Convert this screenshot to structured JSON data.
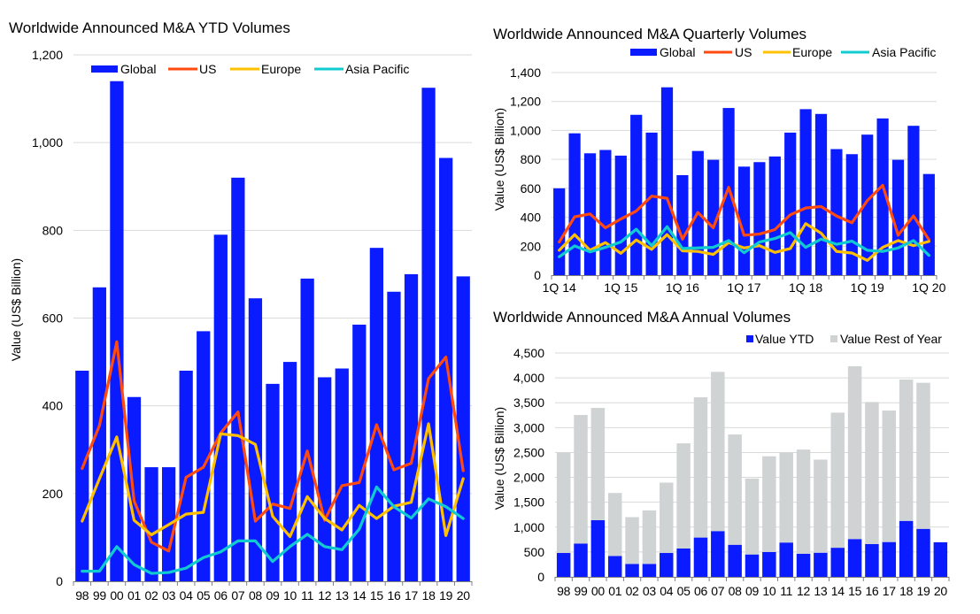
{
  "colors": {
    "global": "#0a1cff",
    "us": "#ff4a10",
    "europe": "#ffc000",
    "asia_pacific": "#10ccd0",
    "rest_of_year": "#d0d3d4",
    "grid": "#d9d9d9"
  },
  "chart_data": [
    {
      "type": "bar+line",
      "title": "Worldwide Announced M&A YTD Volumes",
      "xlabel": "",
      "ylabel": "Value (US$ Billion)",
      "ylim": [
        0,
        1200
      ],
      "yticks": [
        0,
        200,
        400,
        600,
        800,
        1000,
        1200
      ],
      "ytick_labels": [
        "0",
        "200",
        "400",
        "600",
        "800",
        "1,000",
        "1,200"
      ],
      "grid": true,
      "legend_position": "top",
      "categories": [
        "98",
        "99",
        "00",
        "01",
        "02",
        "03",
        "04",
        "05",
        "06",
        "07",
        "08",
        "09",
        "10",
        "11",
        "12",
        "13",
        "14",
        "15",
        "16",
        "17",
        "18",
        "19",
        "20"
      ],
      "x_tick_labels": [
        "98",
        "99",
        "00",
        "01",
        "02",
        "03",
        "04",
        "05",
        "06",
        "07",
        "08",
        "09",
        "10",
        "11",
        "12",
        "13",
        "14",
        "15",
        "16",
        "17",
        "18",
        "19",
        "20"
      ],
      "series": [
        {
          "name": "Global",
          "kind": "bar",
          "color": "#0a1cff",
          "values": [
            480,
            670,
            1140,
            420,
            260,
            260,
            480,
            570,
            790,
            920,
            645,
            450,
            500,
            690,
            465,
            485,
            585,
            760,
            660,
            700,
            1125,
            965,
            695
          ]
        },
        {
          "name": "US",
          "kind": "line",
          "color": "#ff4a10",
          "values": [
            257,
            355,
            546,
            183,
            89,
            69,
            237,
            260,
            338,
            386,
            137,
            176,
            166,
            297,
            139,
            218,
            225,
            357,
            254,
            269,
            462,
            511,
            252
          ]
        },
        {
          "name": "Europe",
          "kind": "line",
          "color": "#ffc000",
          "values": [
            137,
            234,
            329,
            139,
            106,
            129,
            153,
            157,
            336,
            332,
            312,
            148,
            102,
            193,
            143,
            117,
            173,
            143,
            171,
            180,
            359,
            104,
            234
          ]
        },
        {
          "name": "Asia Pacific",
          "kind": "line",
          "color": "#10ccd0",
          "values": [
            23,
            23,
            79,
            38,
            18,
            20,
            30,
            54,
            67,
            92,
            92,
            45,
            79,
            107,
            79,
            72,
            119,
            215,
            170,
            144,
            188,
            170,
            143
          ]
        }
      ]
    },
    {
      "type": "bar+line",
      "title": "Worldwide Announced M&A Quarterly Volumes",
      "xlabel": "",
      "ylabel": "Value (US$ Billion)",
      "ylim": [
        0,
        1400
      ],
      "yticks": [
        0,
        200,
        400,
        600,
        800,
        1000,
        1200,
        1400
      ],
      "ytick_labels": [
        "0",
        "200",
        "400",
        "600",
        "800",
        "1,000",
        "1,200",
        "1,400"
      ],
      "grid": true,
      "legend_position": "top",
      "categories": [
        "1Q 14",
        "2Q 14",
        "3Q 14",
        "4Q 14",
        "1Q 15",
        "2Q 15",
        "3Q 15",
        "4Q 15",
        "1Q 16",
        "2Q 16",
        "3Q 16",
        "4Q 16",
        "1Q 17",
        "2Q 17",
        "3Q 17",
        "4Q 17",
        "1Q 18",
        "2Q 18",
        "3Q 18",
        "4Q 18",
        "1Q 19",
        "2Q 19",
        "3Q 19",
        "4Q 19",
        "1Q 20"
      ],
      "x_tick_labels": [
        "1Q 14",
        "",
        "",
        "",
        "1Q 15",
        "",
        "",
        "",
        "1Q 16",
        "",
        "",
        "",
        "1Q 17",
        "",
        "",
        "",
        "1Q 18",
        "",
        "",
        "",
        "1Q 19",
        "",
        "",
        "",
        "1Q 20"
      ],
      "series": [
        {
          "name": "Global",
          "kind": "bar",
          "color": "#0a1cff",
          "values": [
            600,
            980,
            842,
            865,
            826,
            1108,
            985,
            1298,
            691,
            858,
            797,
            1155,
            750,
            781,
            820,
            985,
            1147,
            1114,
            871,
            836,
            971,
            1083,
            797,
            1032,
            699
          ]
        },
        {
          "name": "US",
          "kind": "line",
          "color": "#ff4a10",
          "values": [
            229,
            403,
            423,
            327,
            388,
            443,
            546,
            531,
            249,
            433,
            327,
            607,
            276,
            284,
            315,
            417,
            464,
            474,
            409,
            362,
            515,
            621,
            276,
            409,
            245
          ]
        },
        {
          "name": "Europe",
          "kind": "line",
          "color": "#ffc000",
          "values": [
            172,
            280,
            172,
            225,
            151,
            243,
            178,
            280,
            168,
            164,
            143,
            225,
            188,
            204,
            157,
            184,
            356,
            290,
            164,
            153,
            102,
            192,
            239,
            204,
            233
          ]
        },
        {
          "name": "Asia Pacific",
          "kind": "line",
          "color": "#10ccd0",
          "values": [
            127,
            202,
            161,
            192,
            229,
            317,
            204,
            335,
            184,
            188,
            192,
            239,
            155,
            229,
            253,
            294,
            192,
            249,
            213,
            235,
            172,
            164,
            188,
            239,
            137
          ]
        }
      ]
    },
    {
      "type": "stacked-bar",
      "title": "Worldwide Announced M&A Annual Volumes",
      "xlabel": "",
      "ylabel": "Value (US$ Billion)",
      "ylim": [
        0,
        4500
      ],
      "yticks": [
        0,
        500,
        1000,
        1500,
        2000,
        2500,
        3000,
        3500,
        4000,
        4500
      ],
      "ytick_labels": [
        "0",
        "500",
        "1,000",
        "1,500",
        "2,000",
        "2,500",
        "3,000",
        "3,500",
        "4,000",
        "4,500"
      ],
      "grid": true,
      "legend_position": "top-right",
      "categories": [
        "98",
        "99",
        "00",
        "01",
        "02",
        "03",
        "04",
        "05",
        "06",
        "07",
        "08",
        "09",
        "10",
        "11",
        "12",
        "13",
        "14",
        "15",
        "16",
        "17",
        "18",
        "19",
        "20"
      ],
      "x_tick_labels": [
        "98",
        "99",
        "00",
        "01",
        "02",
        "03",
        "04",
        "05",
        "06",
        "07",
        "08",
        "09",
        "10",
        "11",
        "12",
        "13",
        "14",
        "15",
        "16",
        "17",
        "18",
        "19",
        "20"
      ],
      "series": [
        {
          "name": "Value YTD",
          "kind": "bar",
          "color": "#0a1cff",
          "values": [
            480,
            670,
            1140,
            420,
            260,
            260,
            480,
            570,
            790,
            920,
            645,
            450,
            500,
            690,
            465,
            485,
            585,
            760,
            660,
            700,
            1125,
            965,
            695
          ]
        },
        {
          "name": "Value Rest of Year",
          "kind": "bar",
          "color": "#d0d3d4",
          "values": [
            2020,
            2584,
            2257,
            1266,
            940,
            1076,
            1414,
            2114,
            2820,
            3201,
            2217,
            1527,
            1923,
            1810,
            2094,
            1872,
            2716,
            3474,
            2855,
            2643,
            2842,
            2936,
            0
          ]
        }
      ]
    }
  ]
}
